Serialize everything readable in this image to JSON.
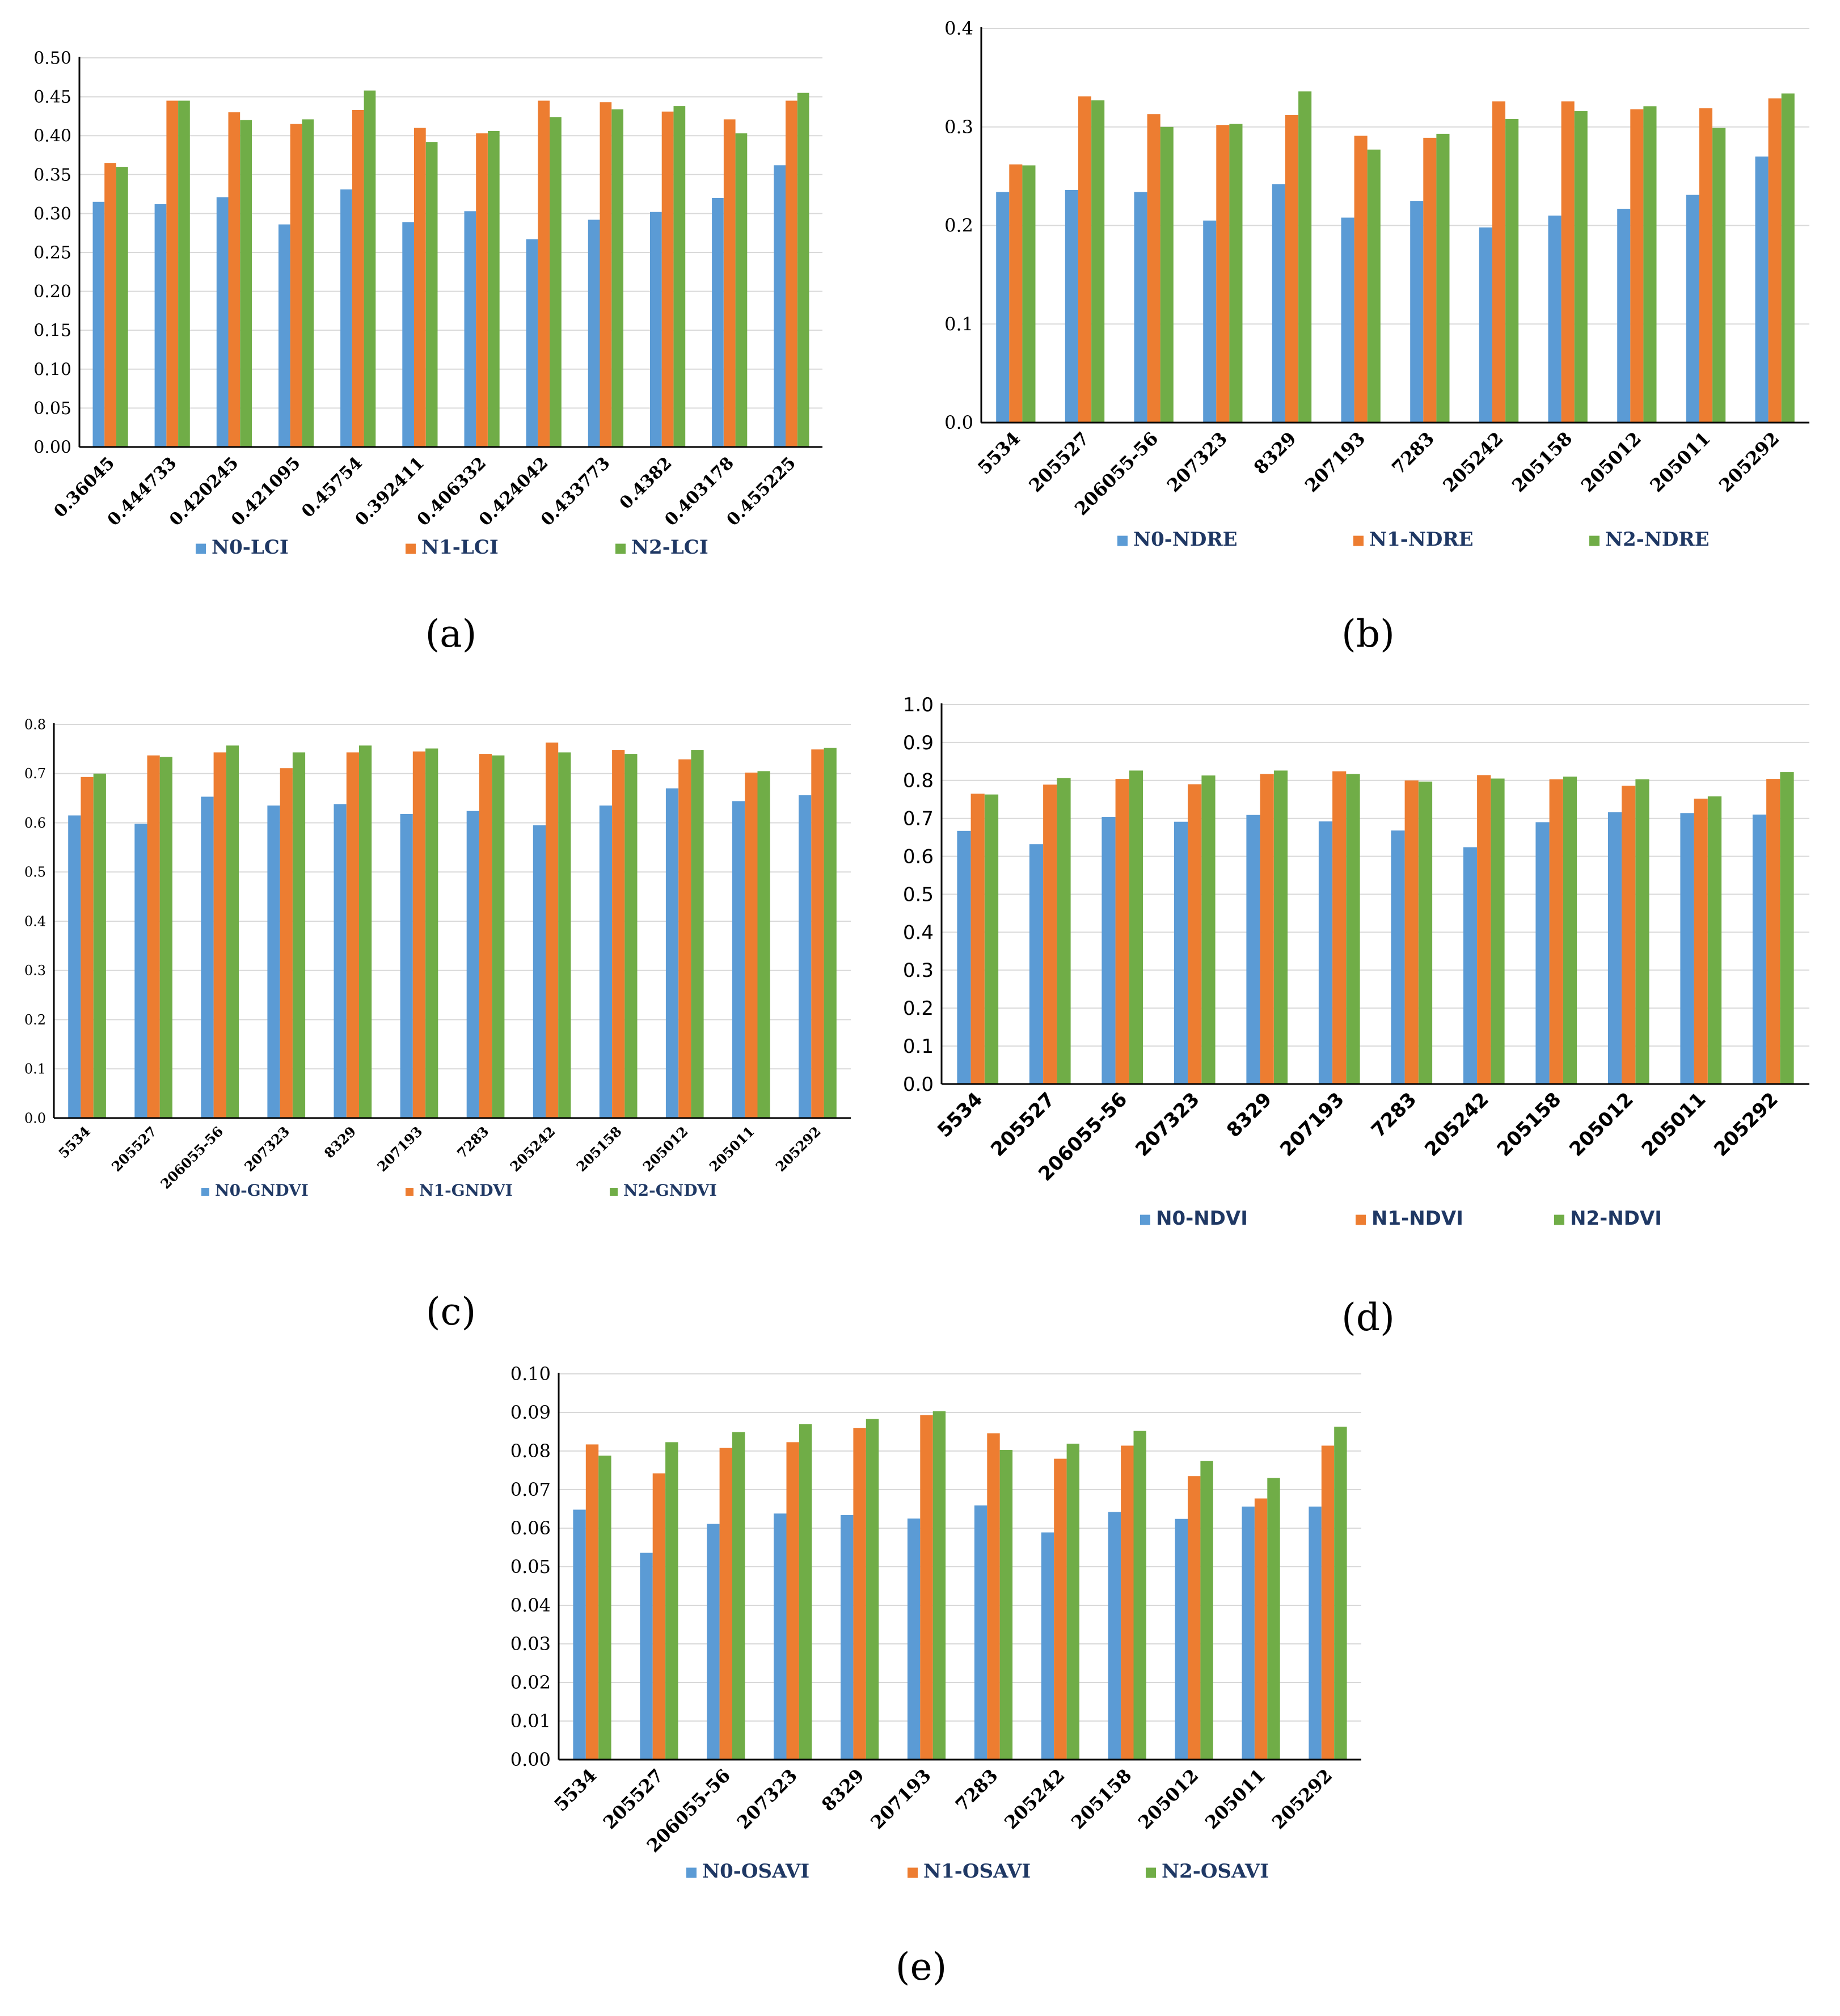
{
  "figure": {
    "colors": {
      "N0": "#5b9bd5",
      "N1": "#ed7d31",
      "N2": "#70ad47",
      "axis": "#000000",
      "grid": "#d9d9d9"
    },
    "chart_data": [
      {
        "id": "a",
        "caption": "(a)",
        "type": "bar",
        "title": "",
        "xlabel": "",
        "ylabel": "",
        "ylim": [
          0,
          0.5
        ],
        "yticks": [
          "0.00",
          "0.05",
          "0.10",
          "0.15",
          "0.20",
          "0.25",
          "0.30",
          "0.35",
          "0.40",
          "0.45",
          "0.50"
        ],
        "grid": true,
        "legend_position": "bottom",
        "categories": [
          "0.36045",
          "0.444733",
          "0.420245",
          "0.421095",
          "0.45754",
          "0.392411",
          "0.406332",
          "0.424042",
          "0.433773",
          "0.4382",
          "0.403178",
          "0.455225"
        ],
        "series": [
          {
            "name": "N0-LCI",
            "values": [
              0.315,
              0.312,
              0.321,
              0.286,
              0.331,
              0.289,
              0.303,
              0.267,
              0.292,
              0.302,
              0.32,
              0.362
            ]
          },
          {
            "name": "N1-LCI",
            "values": [
              0.365,
              0.445,
              0.43,
              0.415,
              0.433,
              0.41,
              0.403,
              0.445,
              0.443,
              0.431,
              0.421,
              0.445
            ]
          },
          {
            "name": "N2-LCI",
            "values": [
              0.36,
              0.445,
              0.42,
              0.421,
              0.458,
              0.392,
              0.406,
              0.424,
              0.434,
              0.438,
              0.403,
              0.455
            ]
          }
        ]
      },
      {
        "id": "b",
        "caption": "(b)",
        "type": "bar",
        "title": "",
        "xlabel": "",
        "ylabel": "",
        "ylim": [
          0,
          0.4
        ],
        "yticks": [
          "0.0",
          "0.1",
          "0.2",
          "0.3",
          "0.4"
        ],
        "grid": true,
        "legend_position": "bottom",
        "categories": [
          "5534",
          "205527",
          "206055-56",
          "207323",
          "8329",
          "207193",
          "7283",
          "205242",
          "205158",
          "205012",
          "205011",
          "205292"
        ],
        "series": [
          {
            "name": "N0-NDRE",
            "values": [
              0.234,
              0.236,
              0.234,
              0.205,
              0.242,
              0.208,
              0.225,
              0.198,
              0.21,
              0.217,
              0.231,
              0.27
            ]
          },
          {
            "name": "N1-NDRE",
            "values": [
              0.262,
              0.331,
              0.313,
              0.302,
              0.312,
              0.291,
              0.289,
              0.326,
              0.326,
              0.318,
              0.319,
              0.329
            ]
          },
          {
            "name": "N2-NDRE",
            "values": [
              0.261,
              0.327,
              0.3,
              0.303,
              0.336,
              0.277,
              0.293,
              0.308,
              0.316,
              0.321,
              0.299,
              0.334
            ]
          }
        ]
      },
      {
        "id": "c",
        "caption": "(c)",
        "type": "bar",
        "title": "",
        "xlabel": "",
        "ylabel": "",
        "ylim": [
          0,
          0.8
        ],
        "yticks": [
          "0.0",
          "0.1",
          "0.2",
          "0.3",
          "0.4",
          "0.5",
          "0.6",
          "0.7",
          "0.8"
        ],
        "grid": true,
        "legend_position": "bottom",
        "categories": [
          "5534",
          "205527",
          "206055-56",
          "207323",
          "8329",
          "207193",
          "7283",
          "205242",
          "205158",
          "205012",
          "205011",
          "205292"
        ],
        "series": [
          {
            "name": "N0-GNDVI",
            "values": [
              0.615,
              0.598,
              0.653,
              0.635,
              0.638,
              0.618,
              0.624,
              0.595,
              0.635,
              0.67,
              0.644,
              0.656
            ]
          },
          {
            "name": "N1-GNDVI",
            "values": [
              0.693,
              0.737,
              0.743,
              0.711,
              0.743,
              0.745,
              0.74,
              0.763,
              0.748,
              0.729,
              0.702,
              0.749
            ]
          },
          {
            "name": "N2-GNDVI",
            "values": [
              0.7,
              0.734,
              0.757,
              0.743,
              0.757,
              0.751,
              0.737,
              0.743,
              0.74,
              0.748,
              0.705,
              0.752
            ]
          }
        ]
      },
      {
        "id": "d",
        "caption": "(d)",
        "type": "bar",
        "title": "",
        "xlabel": "",
        "ylabel": "",
        "ylim": [
          0,
          1.0
        ],
        "yticks": [
          "0.0",
          "0.1",
          "0.2",
          "0.3",
          "0.4",
          "0.5",
          "0.6",
          "0.7",
          "0.8",
          "0.9",
          "1.0"
        ],
        "grid": true,
        "legend_position": "bottom",
        "categories": [
          "5534",
          "205527",
          "206055-56",
          "207323",
          "8329",
          "207193",
          "7283",
          "205242",
          "205158",
          "205012",
          "205011",
          "205292"
        ],
        "series": [
          {
            "name": "N0-NDVI",
            "values": [
              0.667,
              0.632,
              0.704,
              0.691,
              0.709,
              0.692,
              0.668,
              0.624,
              0.69,
              0.716,
              0.714,
              0.71
            ]
          },
          {
            "name": "N1-NDVI",
            "values": [
              0.765,
              0.789,
              0.804,
              0.79,
              0.817,
              0.824,
              0.8,
              0.814,
              0.803,
              0.786,
              0.752,
              0.804
            ]
          },
          {
            "name": "N2-NDVI",
            "values": [
              0.763,
              0.806,
              0.826,
              0.813,
              0.826,
              0.817,
              0.797,
              0.805,
              0.81,
              0.803,
              0.758,
              0.822
            ]
          }
        ]
      },
      {
        "id": "e",
        "caption": "(e)",
        "type": "bar",
        "title": "",
        "xlabel": "",
        "ylabel": "",
        "ylim": [
          0,
          0.1
        ],
        "yticks": [
          "0.00",
          "0.01",
          "0.02",
          "0.03",
          "0.04",
          "0.05",
          "0.06",
          "0.07",
          "0.08",
          "0.09",
          "0.10"
        ],
        "grid": true,
        "legend_position": "bottom",
        "categories": [
          "5534",
          "205527",
          "206055-56",
          "207323",
          "8329",
          "207193",
          "7283",
          "205242",
          "205158",
          "205012",
          "205011",
          "205292"
        ],
        "series": [
          {
            "name": "N0-OSAVI",
            "values": [
              0.0648,
              0.0536,
              0.0611,
              0.0638,
              0.0634,
              0.0625,
              0.0659,
              0.0589,
              0.0642,
              0.0624,
              0.0656,
              0.0656
            ]
          },
          {
            "name": "N1-OSAVI",
            "values": [
              0.0817,
              0.0742,
              0.0808,
              0.0823,
              0.086,
              0.0893,
              0.0846,
              0.078,
              0.0814,
              0.0735,
              0.0677,
              0.0814
            ]
          },
          {
            "name": "N2-OSAVI",
            "values": [
              0.0788,
              0.0823,
              0.0849,
              0.087,
              0.0883,
              0.0903,
              0.0803,
              0.0819,
              0.0852,
              0.0774,
              0.073,
              0.0863
            ]
          }
        ]
      }
    ]
  }
}
